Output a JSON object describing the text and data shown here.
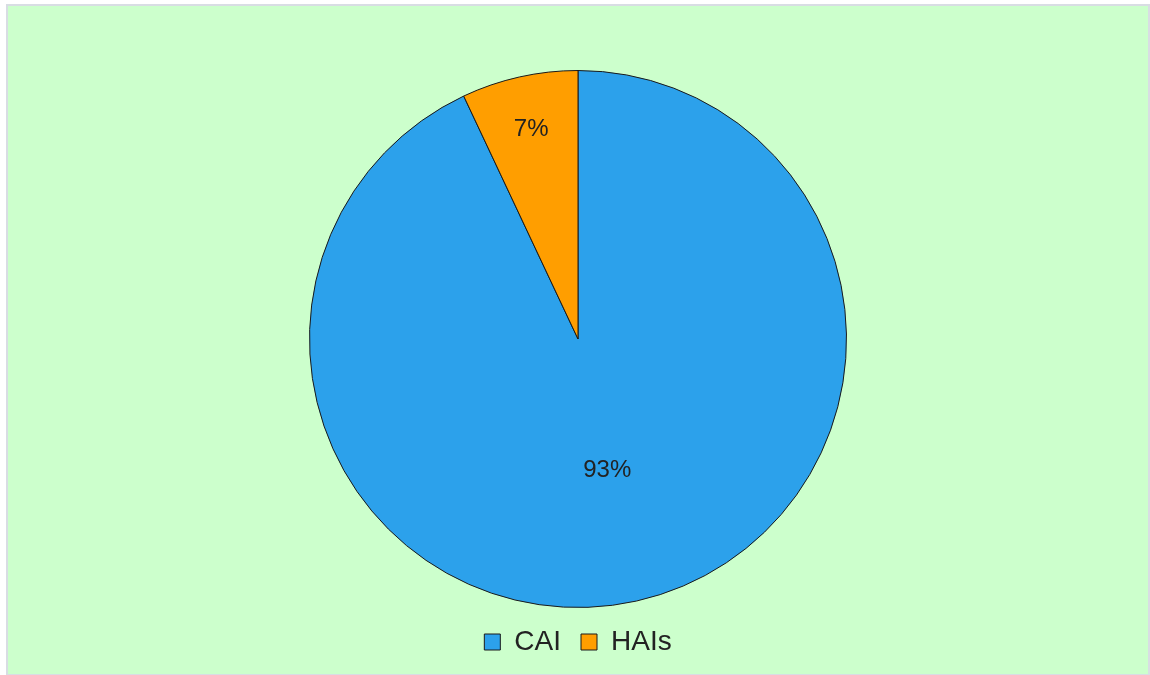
{
  "chart_data": {
    "type": "pie",
    "categories": [
      "CAI",
      "HAIs"
    ],
    "values": [
      93,
      7
    ],
    "colors": [
      "#2ca1eb",
      "#ff9e00"
    ],
    "value_labels": [
      "93%",
      "7%"
    ],
    "legend": "bottom"
  }
}
